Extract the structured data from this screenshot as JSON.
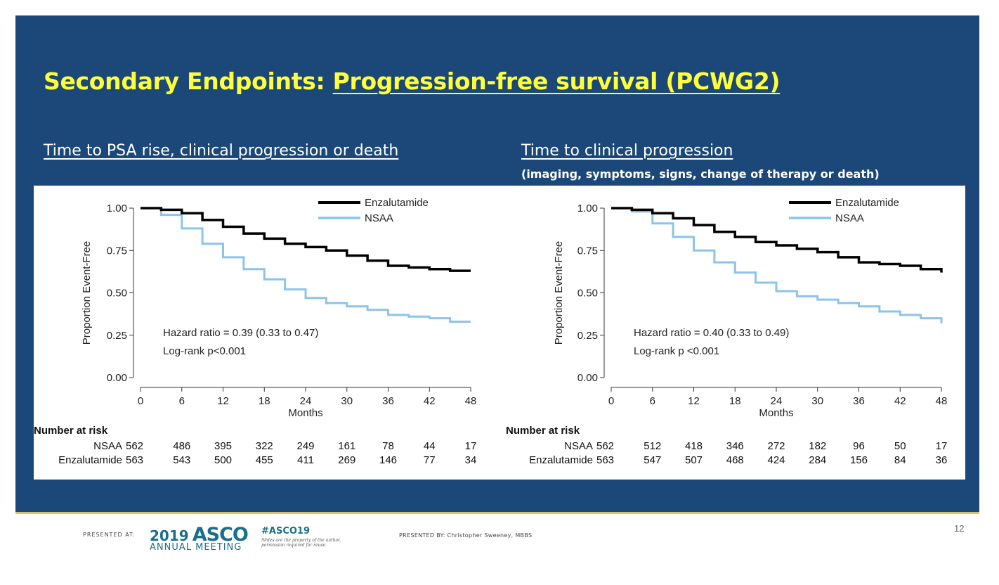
{
  "slide": {
    "title_prefix": "Secondary Endpoints: ",
    "title_link": "Progression-free survival (PCWG2)",
    "left_subtitle": "Time to PSA rise, clinical progression or death",
    "right_subtitle": "Time to clinical progression",
    "right_note": "(imaging, symptoms, signs, change of therapy or death)",
    "page_number": "12",
    "colors": {
      "background": "#1b4878",
      "title": "#ffff3c",
      "enzalutamide": "#000000",
      "nsaa": "#8cc4ea"
    }
  },
  "footer": {
    "presented_at_label": "PRESENTED AT:",
    "logo_year": "2019",
    "logo_name": "ASCO",
    "logo_sub": "ANNUAL MEETING",
    "hashtag": "#ASCO19",
    "hashtag_note": "Slides are the property of the author, permission required for reuse.",
    "presented_by": "PRESENTED BY: Christopher Sweeney, MBBS"
  },
  "chart_data": [
    {
      "type": "line",
      "ylabel": "Proportion Event-Free",
      "xlabel": "Months",
      "x_ticks": [
        "0",
        "6",
        "12",
        "18",
        "24",
        "30",
        "36",
        "42",
        "48"
      ],
      "y_ticks": [
        "0.00",
        "0.25",
        "0.50",
        "0.75",
        "1.00"
      ],
      "xlim": [
        0,
        48
      ],
      "ylim": [
        0,
        1
      ],
      "legend_position": "top-right",
      "series": [
        {
          "name": "Enzalutamide",
          "color": "#000000",
          "x": [
            0,
            3,
            6,
            9,
            12,
            15,
            18,
            21,
            24,
            27,
            30,
            33,
            36,
            39,
            42,
            45,
            48
          ],
          "y": [
            1.0,
            0.99,
            0.97,
            0.93,
            0.89,
            0.85,
            0.82,
            0.79,
            0.77,
            0.75,
            0.72,
            0.69,
            0.66,
            0.65,
            0.64,
            0.63,
            0.63
          ]
        },
        {
          "name": "NSAA",
          "color": "#8cc4ea",
          "x": [
            0,
            3,
            6,
            9,
            12,
            15,
            18,
            21,
            24,
            27,
            30,
            33,
            36,
            39,
            42,
            45,
            48
          ],
          "y": [
            1.0,
            0.96,
            0.88,
            0.79,
            0.71,
            0.64,
            0.58,
            0.52,
            0.47,
            0.44,
            0.42,
            0.4,
            0.37,
            0.36,
            0.35,
            0.33,
            0.33
          ]
        }
      ],
      "annotations": [
        "Hazard ratio = 0.39 (0.33 to 0.47)",
        "Log-rank p<0.001"
      ],
      "risk_table": {
        "title": "Number at risk",
        "rows": [
          {
            "label": "NSAA",
            "values": [
              "562",
              "486",
              "395",
              "322",
              "249",
              "161",
              "78",
              "44",
              "17"
            ]
          },
          {
            "label": "Enzalutamide",
            "values": [
              "563",
              "543",
              "500",
              "455",
              "411",
              "269",
              "146",
              "77",
              "34"
            ]
          }
        ]
      }
    },
    {
      "type": "line",
      "ylabel": "Proportion Event-Free",
      "xlabel": "Months",
      "x_ticks": [
        "0",
        "6",
        "12",
        "18",
        "24",
        "30",
        "36",
        "42",
        "48"
      ],
      "y_ticks": [
        "0.00",
        "0.25",
        "0.50",
        "0.75",
        "1.00"
      ],
      "xlim": [
        0,
        48
      ],
      "ylim": [
        0,
        1
      ],
      "legend_position": "top-right",
      "series": [
        {
          "name": "Enzalutamide",
          "color": "#000000",
          "x": [
            0,
            3,
            6,
            9,
            12,
            15,
            18,
            21,
            24,
            27,
            30,
            33,
            36,
            39,
            42,
            45,
            48
          ],
          "y": [
            1.0,
            0.99,
            0.97,
            0.94,
            0.9,
            0.86,
            0.83,
            0.8,
            0.78,
            0.76,
            0.74,
            0.71,
            0.68,
            0.67,
            0.66,
            0.64,
            0.62
          ]
        },
        {
          "name": "NSAA",
          "color": "#8cc4ea",
          "x": [
            0,
            3,
            6,
            9,
            12,
            15,
            18,
            21,
            24,
            27,
            30,
            33,
            36,
            39,
            42,
            45,
            48
          ],
          "y": [
            1.0,
            0.98,
            0.91,
            0.83,
            0.75,
            0.68,
            0.62,
            0.56,
            0.51,
            0.48,
            0.46,
            0.44,
            0.42,
            0.39,
            0.37,
            0.35,
            0.32
          ]
        }
      ],
      "annotations": [
        "Hazard ratio = 0.40 (0.33 to 0.49)",
        "Log-rank p <0.001"
      ],
      "risk_table": {
        "title": "Number at risk",
        "rows": [
          {
            "label": "NSAA",
            "values": [
              "562",
              "512",
              "418",
              "346",
              "272",
              "182",
              "96",
              "50",
              "17"
            ]
          },
          {
            "label": "Enzalutamide",
            "values": [
              "563",
              "547",
              "507",
              "468",
              "424",
              "284",
              "156",
              "84",
              "36"
            ]
          }
        ]
      }
    }
  ]
}
